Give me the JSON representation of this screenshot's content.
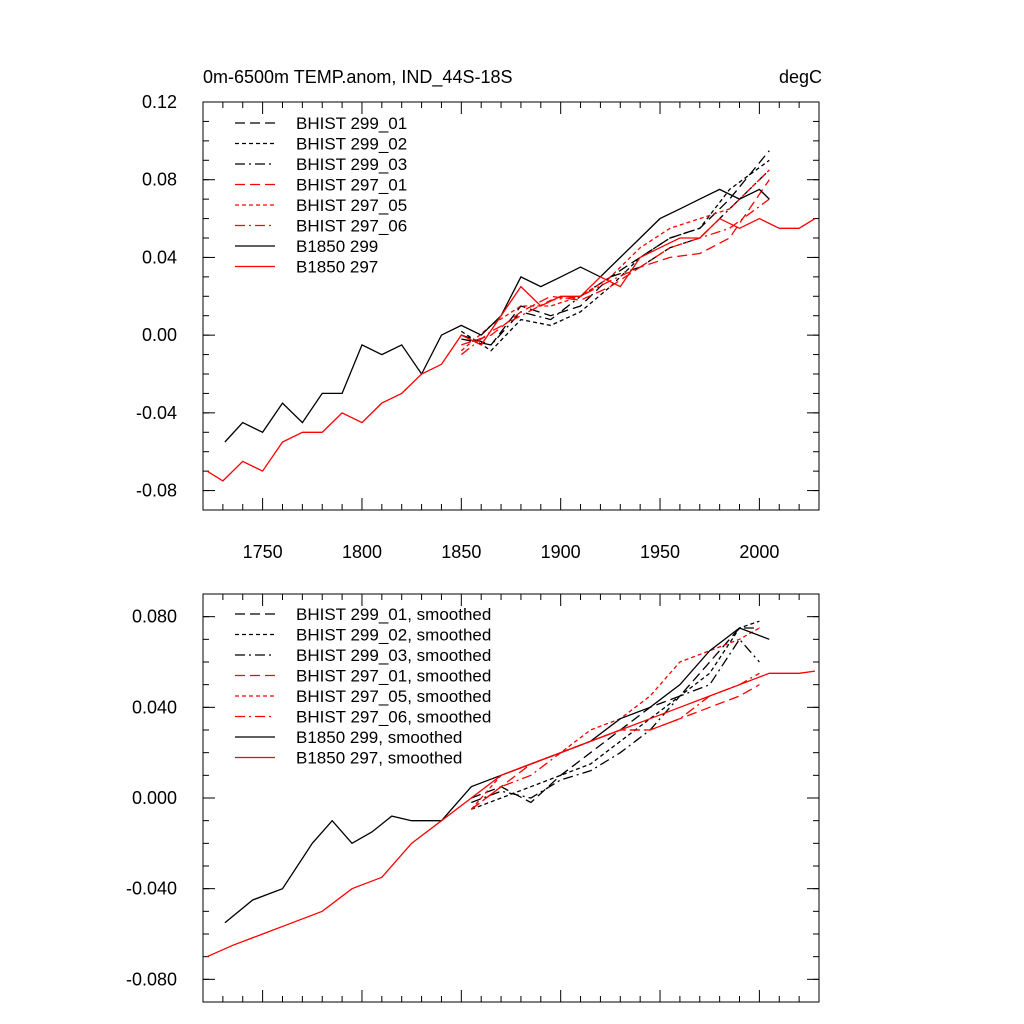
{
  "chart_data": [
    {
      "type": "line",
      "title": "0m-6500m TEMP.anom, IND_44S-18S",
      "units": "degC",
      "xlim": [
        1720,
        2030
      ],
      "ylim": [
        -0.09,
        0.12
      ],
      "xticks": [
        1750,
        1800,
        1850,
        1900,
        1950,
        2000
      ],
      "xtick_labels": [
        "1750",
        "1800",
        "1850",
        "1900",
        "1950",
        "2000"
      ],
      "yticks": [
        -0.08,
        -0.04,
        0.0,
        0.04,
        0.08,
        0.12
      ],
      "ytick_labels": [
        "-0.08",
        "-0.04",
        "0.00",
        "0.04",
        "0.08",
        "0.12"
      ],
      "legend_position": "top-left",
      "series": [
        {
          "name": "BHIST 299_01",
          "color": "#000000",
          "dash": "long-dash",
          "x": [
            1850,
            1865,
            1880,
            1895,
            1910,
            1925,
            1940,
            1955,
            1970,
            1985,
            2005
          ],
          "y": [
            0.0,
            -0.005,
            0.015,
            0.01,
            0.015,
            0.03,
            0.04,
            0.05,
            0.055,
            0.07,
            0.095
          ]
        },
        {
          "name": "BHIST 299_02",
          "color": "#000000",
          "dash": "short-dash",
          "x": [
            1850,
            1865,
            1880,
            1895,
            1910,
            1925,
            1940,
            1955,
            1970,
            1985,
            2005
          ],
          "y": [
            0.002,
            -0.008,
            0.008,
            0.005,
            0.012,
            0.025,
            0.04,
            0.05,
            0.055,
            0.075,
            0.09
          ]
        },
        {
          "name": "BHIST 299_03",
          "color": "#000000",
          "dash": "dash-dot",
          "x": [
            1850,
            1865,
            1880,
            1895,
            1910,
            1925,
            1940,
            1955,
            1970,
            1985,
            2005
          ],
          "y": [
            -0.002,
            -0.005,
            0.012,
            0.008,
            0.02,
            0.03,
            0.035,
            0.045,
            0.05,
            0.065,
            0.085
          ]
        },
        {
          "name": "BHIST 297_01",
          "color": "#ff0000",
          "dash": "long-dash",
          "x": [
            1850,
            1865,
            1880,
            1895,
            1910,
            1925,
            1940,
            1955,
            1970,
            1985,
            2005
          ],
          "y": [
            -0.005,
            0.0,
            0.012,
            0.02,
            0.018,
            0.025,
            0.035,
            0.04,
            0.042,
            0.05,
            0.08
          ]
        },
        {
          "name": "BHIST 297_05",
          "color": "#ff0000",
          "dash": "short-dash",
          "x": [
            1850,
            1865,
            1880,
            1895,
            1910,
            1925,
            1940,
            1955,
            1970,
            1985,
            2005
          ],
          "y": [
            -0.008,
            0.005,
            0.015,
            0.015,
            0.02,
            0.03,
            0.045,
            0.055,
            0.06,
            0.065,
            0.085
          ]
        },
        {
          "name": "BHIST 297_06",
          "color": "#ff0000",
          "dash": "dash-dot",
          "x": [
            1850,
            1865,
            1880,
            1895,
            1910,
            1925,
            1940,
            1955,
            1970,
            1985,
            2005
          ],
          "y": [
            -0.01,
            0.002,
            0.01,
            0.018,
            0.02,
            0.028,
            0.035,
            0.045,
            0.05,
            0.055,
            0.07
          ]
        },
        {
          "name": "B1850 299",
          "color": "#000000",
          "dash": "solid",
          "x": [
            1731,
            1740,
            1750,
            1760,
            1770,
            1780,
            1790,
            1800,
            1810,
            1820,
            1830,
            1840,
            1850,
            1860,
            1870,
            1880,
            1890,
            1900,
            1910,
            1920,
            1930,
            1940,
            1950,
            1960,
            1970,
            1980,
            1990,
            2000,
            2005
          ],
          "y": [
            -0.055,
            -0.045,
            -0.05,
            -0.035,
            -0.045,
            -0.03,
            -0.03,
            -0.005,
            -0.01,
            -0.005,
            -0.02,
            0.0,
            0.005,
            0.0,
            0.01,
            0.03,
            0.025,
            0.03,
            0.035,
            0.03,
            0.04,
            0.05,
            0.06,
            0.065,
            0.07,
            0.075,
            0.07,
            0.075,
            0.07
          ]
        },
        {
          "name": "B1850 297",
          "color": "#ff0000",
          "dash": "solid",
          "x": [
            1722,
            1730,
            1740,
            1750,
            1760,
            1770,
            1780,
            1790,
            1800,
            1810,
            1820,
            1830,
            1840,
            1850,
            1860,
            1870,
            1880,
            1890,
            1900,
            1910,
            1920,
            1930,
            1940,
            1950,
            1960,
            1970,
            1980,
            1990,
            2000,
            2010,
            2020,
            2028
          ],
          "y": [
            -0.07,
            -0.075,
            -0.065,
            -0.07,
            -0.055,
            -0.05,
            -0.05,
            -0.04,
            -0.045,
            -0.035,
            -0.03,
            -0.02,
            -0.015,
            0.0,
            -0.005,
            0.01,
            0.025,
            0.015,
            0.02,
            0.02,
            0.03,
            0.025,
            0.04,
            0.045,
            0.05,
            0.05,
            0.06,
            0.055,
            0.06,
            0.055,
            0.055,
            0.06
          ]
        }
      ]
    },
    {
      "type": "line",
      "xlim": [
        1720,
        2030
      ],
      "ylim": [
        -0.09,
        0.09
      ],
      "yticks": [
        -0.08,
        -0.04,
        0.0,
        0.04,
        0.08
      ],
      "ytick_labels": [
        "-0.080",
        "-0.040",
        "0.000",
        "0.040",
        "0.080"
      ],
      "legend_position": "top-left",
      "series": [
        {
          "name": "BHIST 299_01, smoothed",
          "color": "#000000",
          "dash": "long-dash",
          "x": [
            1855,
            1870,
            1885,
            1900,
            1915,
            1930,
            1945,
            1960,
            1975,
            1990,
            2000
          ],
          "y": [
            0.0,
            0.005,
            -0.002,
            0.01,
            0.02,
            0.03,
            0.04,
            0.045,
            0.06,
            0.075,
            0.075
          ]
        },
        {
          "name": "BHIST 299_02, smoothed",
          "color": "#000000",
          "dash": "short-dash",
          "x": [
            1855,
            1870,
            1885,
            1900,
            1915,
            1930,
            1945,
            1960,
            1975,
            1990,
            2000
          ],
          "y": [
            -0.005,
            0.0,
            0.005,
            0.01,
            0.015,
            0.025,
            0.035,
            0.045,
            0.055,
            0.075,
            0.078
          ]
        },
        {
          "name": "BHIST 299_03, smoothed",
          "color": "#000000",
          "dash": "dash-dot",
          "x": [
            1855,
            1870,
            1885,
            1900,
            1915,
            1930,
            1945,
            1960,
            1975,
            1990,
            2000
          ],
          "y": [
            -0.002,
            0.003,
            0.0,
            0.008,
            0.012,
            0.02,
            0.03,
            0.045,
            0.05,
            0.07,
            0.06
          ]
        },
        {
          "name": "BHIST 297_01, smoothed",
          "color": "#ff0000",
          "dash": "long-dash",
          "x": [
            1855,
            1870,
            1885,
            1900,
            1915,
            1930,
            1945,
            1960,
            1975,
            1990,
            2000
          ],
          "y": [
            -0.005,
            0.005,
            0.015,
            0.02,
            0.025,
            0.03,
            0.03,
            0.035,
            0.04,
            0.045,
            0.05
          ]
        },
        {
          "name": "BHIST 297_05, smoothed",
          "color": "#ff0000",
          "dash": "short-dash",
          "x": [
            1855,
            1870,
            1885,
            1900,
            1915,
            1930,
            1945,
            1960,
            1975,
            1990,
            2000
          ],
          "y": [
            -0.005,
            0.01,
            0.015,
            0.02,
            0.03,
            0.035,
            0.045,
            0.06,
            0.065,
            0.07,
            0.075
          ]
        },
        {
          "name": "BHIST 297_06, smoothed",
          "color": "#ff0000",
          "dash": "dash-dot",
          "x": [
            1855,
            1870,
            1885,
            1900,
            1915,
            1930,
            1945,
            1960,
            1975,
            1990,
            2000
          ],
          "y": [
            -0.005,
            0.005,
            0.01,
            0.02,
            0.025,
            0.03,
            0.03,
            0.035,
            0.045,
            0.05,
            0.055
          ]
        },
        {
          "name": "B1850 299, smoothed",
          "color": "#000000",
          "dash": "solid",
          "x": [
            1731,
            1745,
            1760,
            1775,
            1785,
            1795,
            1805,
            1815,
            1825,
            1840,
            1855,
            1870,
            1885,
            1900,
            1915,
            1930,
            1945,
            1960,
            1975,
            1990,
            2005
          ],
          "y": [
            -0.055,
            -0.045,
            -0.04,
            -0.02,
            -0.01,
            -0.02,
            -0.015,
            -0.008,
            -0.01,
            -0.01,
            0.005,
            0.01,
            0.015,
            0.02,
            0.025,
            0.035,
            0.04,
            0.05,
            0.065,
            0.075,
            0.07
          ]
        },
        {
          "name": "B1850 297, smoothed",
          "color": "#ff0000",
          "dash": "solid",
          "x": [
            1722,
            1735,
            1750,
            1765,
            1780,
            1795,
            1810,
            1825,
            1840,
            1855,
            1870,
            1885,
            1900,
            1915,
            1930,
            1945,
            1960,
            1975,
            1990,
            2005,
            2020,
            2028
          ],
          "y": [
            -0.07,
            -0.065,
            -0.06,
            -0.055,
            -0.05,
            -0.04,
            -0.035,
            -0.02,
            -0.01,
            0.0,
            0.01,
            0.015,
            0.02,
            0.025,
            0.03,
            0.035,
            0.04,
            0.045,
            0.05,
            0.055,
            0.055,
            0.056
          ]
        }
      ]
    }
  ]
}
